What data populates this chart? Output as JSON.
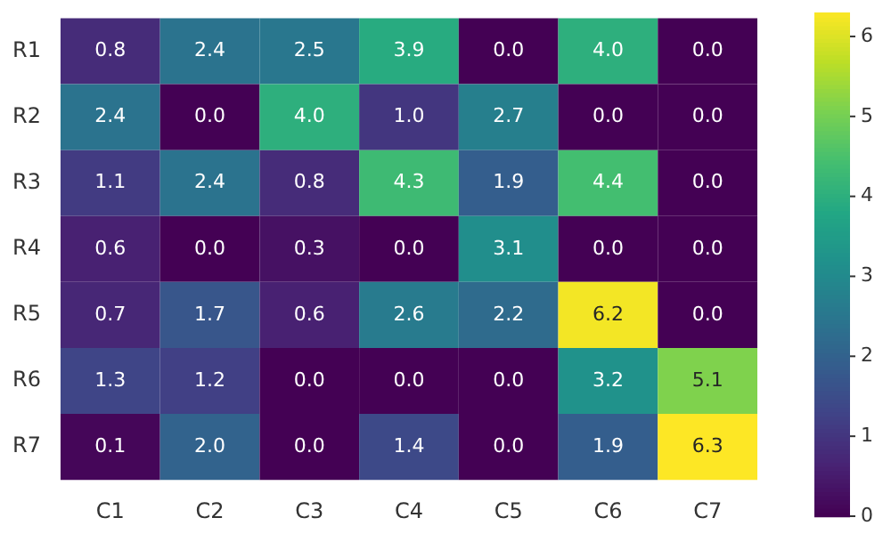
{
  "chart_data": {
    "type": "heatmap",
    "categories": [
      "C1",
      "C2",
      "C3",
      "C4",
      "C5",
      "C6",
      "C7"
    ],
    "y_categories": [
      "R1",
      "R2",
      "R3",
      "R4",
      "R5",
      "R6",
      "R7"
    ],
    "cells": [
      [
        0.8,
        2.4,
        2.5,
        3.9,
        0.0,
        4.0,
        0.0
      ],
      [
        2.4,
        0.0,
        4.0,
        1.0,
        2.7,
        0.0,
        0.0
      ],
      [
        1.1,
        2.4,
        0.8,
        4.3,
        1.9,
        4.4,
        0.0
      ],
      [
        0.6,
        0.0,
        0.3,
        0.0,
        3.1,
        0.0,
        0.0
      ],
      [
        0.7,
        1.7,
        0.6,
        2.6,
        2.2,
        6.2,
        0.0
      ],
      [
        1.3,
        1.2,
        0.0,
        0.0,
        0.0,
        3.2,
        5.1
      ],
      [
        0.1,
        2.0,
        0.0,
        1.4,
        0.0,
        1.9,
        6.3
      ]
    ],
    "cell_labels": [
      [
        "0.8",
        "2.4",
        "2.5",
        "3.9",
        "0.0",
        "4.0",
        "0.0"
      ],
      [
        "2.4",
        "0.0",
        "4.0",
        "1.0",
        "2.7",
        "0.0",
        "0.0"
      ],
      [
        "1.1",
        "2.4",
        "0.8",
        "4.3",
        "1.9",
        "4.4",
        "0.0"
      ],
      [
        "0.6",
        "0.0",
        "0.3",
        "0.0",
        "3.1",
        "0.0",
        "0.0"
      ],
      [
        "0.7",
        "1.7",
        "0.6",
        "2.6",
        "2.2",
        "6.2",
        "0.0"
      ],
      [
        "1.3",
        "1.2",
        "0.0",
        "0.0",
        "0.0",
        "3.2",
        "5.1"
      ],
      [
        "0.1",
        "2.0",
        "0.0",
        "1.4",
        "0.0",
        "1.9",
        "6.3"
      ]
    ],
    "clim": [
      0,
      6.3
    ],
    "cticks": [
      0,
      1,
      2,
      3,
      4,
      5,
      6
    ]
  }
}
